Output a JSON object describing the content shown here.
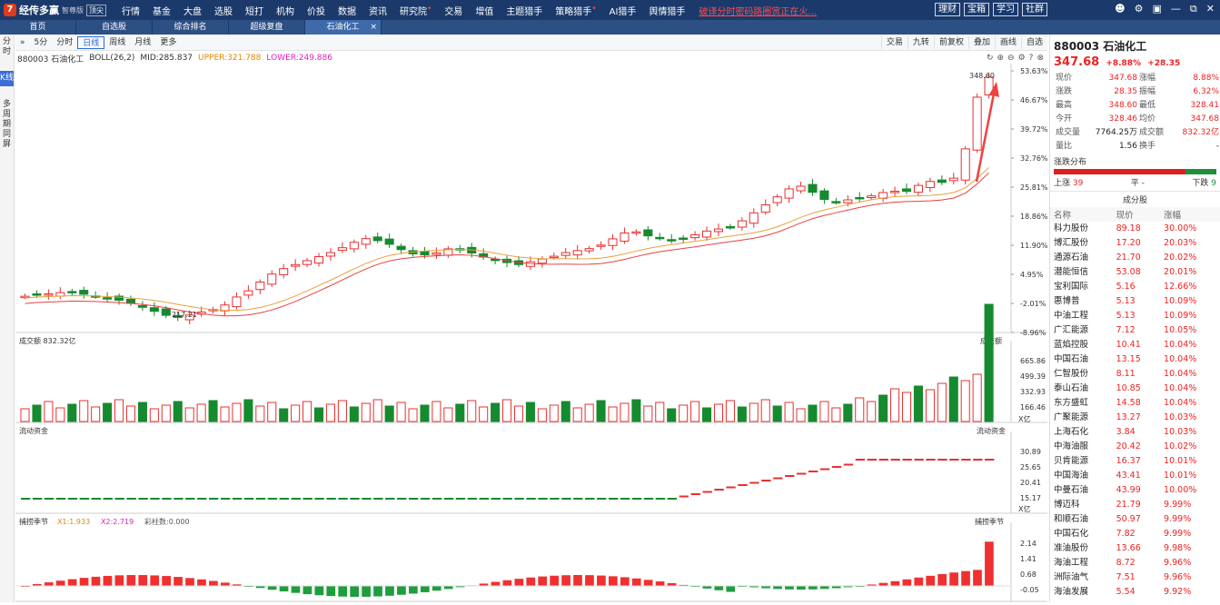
{
  "app": {
    "brand": "经传多赢",
    "version": "智尊版",
    "level": "顶尖",
    "logo": "7"
  },
  "menu": [
    "行情",
    "基金",
    "大盘",
    "选股",
    "短打",
    "机构",
    "价投",
    "数据",
    "资讯",
    "研究院",
    "交易",
    "增值",
    "主题猎手",
    "策略猎手",
    "AI猎手",
    "舆情猎手"
  ],
  "menu_dots": [
    "研究院",
    "策略猎手"
  ],
  "ad_text": "破译分时密码路圈赏正在火...",
  "top_buttons": [
    "理财",
    "宝箱",
    "学习",
    "社群"
  ],
  "top_icons": [
    "user-icon",
    "settings-icon",
    "layout-icon",
    "minimize-icon",
    "restore-icon",
    "close-icon"
  ],
  "tabs": [
    "首页",
    "自选股",
    "综合排名",
    "超级复盘",
    "石油化工"
  ],
  "active_tab": "石油化工",
  "sidebar": [
    "分时",
    "K线",
    "多周期同屏"
  ],
  "toolbar": {
    "left": [
      "5分",
      "分时",
      "日线",
      "周线",
      "月线",
      "更多"
    ],
    "active": "日线",
    "right": [
      "交易",
      "九转",
      "前复权",
      "叠加",
      "画线",
      "自选"
    ]
  },
  "info": {
    "title": "880003 石油化工",
    "boll": "BOLL(26,2)",
    "mid": "MID:285.837",
    "upper": "UPPER:321.788",
    "lower": "LOWER:249.886"
  },
  "price_axis": [
    "53.63%",
    "46.67%",
    "39.72%",
    "32.76%",
    "25.81%",
    "18.86%",
    "11.90%",
    "4.95%",
    "-2.01%",
    "-8.96%"
  ],
  "price_high_label": "348.60",
  "price_low_label": "217.21",
  "vol": {
    "title": "成交额",
    "value": "832.32亿",
    "label": "成交额",
    "axis": [
      "665.86",
      "499.39",
      "332.93",
      "166.46"
    ],
    "unit": "X亿"
  },
  "flow": {
    "title": "流动资金",
    "label": "流动资金",
    "axis": [
      "30.89",
      "25.65",
      "20.41",
      "15.17"
    ],
    "unit": "X亿"
  },
  "catch": {
    "title": "捕捞季节",
    "x1": "X1:1.933",
    "x2": "X2:2.719",
    "bar": "彩柱数:0.000",
    "label": "捕捞季节",
    "axis": [
      "2.14",
      "1.41",
      "0.68",
      "-0.05"
    ]
  },
  "panel": {
    "code": "880003 石油化工",
    "price": "347.68",
    "pct": "+8.88%",
    "chg": "+28.35",
    "quote": [
      [
        "现价",
        "347.68",
        "涨幅",
        "8.88%"
      ],
      [
        "涨跌",
        "28.35",
        "振幅",
        "6.32%"
      ],
      [
        "最高",
        "348.60",
        "最低",
        "328.41"
      ],
      [
        "今开",
        "328.46",
        "均价",
        "347.68"
      ],
      [
        "成交量",
        "7764.25万",
        "成交额",
        "832.32亿"
      ],
      [
        "量比",
        "1.56",
        "换手",
        "-"
      ]
    ],
    "dist_title": "涨跌分布",
    "up_label": "上涨",
    "up": "39",
    "flat_label": "平",
    "flat": "-",
    "down_label": "下跌",
    "down": "9",
    "const_title": "成分股",
    "cols": [
      "名称",
      "现价",
      "涨幅"
    ],
    "stocks": [
      [
        "科力股份",
        "89.18",
        "30.00%"
      ],
      [
        "博汇股份",
        "17.20",
        "20.03%"
      ],
      [
        "通源石油",
        "21.70",
        "20.02%"
      ],
      [
        "潜能恒信",
        "53.08",
        "20.01%"
      ],
      [
        "宝利国际",
        "5.16",
        "12.66%"
      ],
      [
        "惠博普",
        "5.13",
        "10.09%"
      ],
      [
        "中油工程",
        "5.13",
        "10.09%"
      ],
      [
        "广汇能源",
        "7.12",
        "10.05%"
      ],
      [
        "蓝焰控股",
        "10.41",
        "10.04%"
      ],
      [
        "中国石油",
        "13.15",
        "10.04%"
      ],
      [
        "仁智股份",
        "8.11",
        "10.04%"
      ],
      [
        "泰山石油",
        "10.85",
        "10.04%"
      ],
      [
        "东方盛虹",
        "14.58",
        "10.04%"
      ],
      [
        "广聚能源",
        "13.27",
        "10.03%"
      ],
      [
        "上海石化",
        "3.84",
        "10.03%"
      ],
      [
        "中海油服",
        "20.42",
        "10.02%"
      ],
      [
        "贝肯能源",
        "16.37",
        "10.01%"
      ],
      [
        "中国海油",
        "43.41",
        "10.01%"
      ],
      [
        "中曼石油",
        "43.99",
        "10.00%"
      ],
      [
        "博迈科",
        "21.79",
        "9.99%"
      ],
      [
        "和顺石油",
        "50.97",
        "9.99%"
      ],
      [
        "中国石化",
        "7.82",
        "9.99%"
      ],
      [
        "准油股份",
        "13.66",
        "9.98%"
      ],
      [
        "海油工程",
        "8.72",
        "9.96%"
      ],
      [
        "洲际油气",
        "7.51",
        "9.96%"
      ],
      [
        "海油发展",
        "5.54",
        "9.92%"
      ]
    ]
  }
}
